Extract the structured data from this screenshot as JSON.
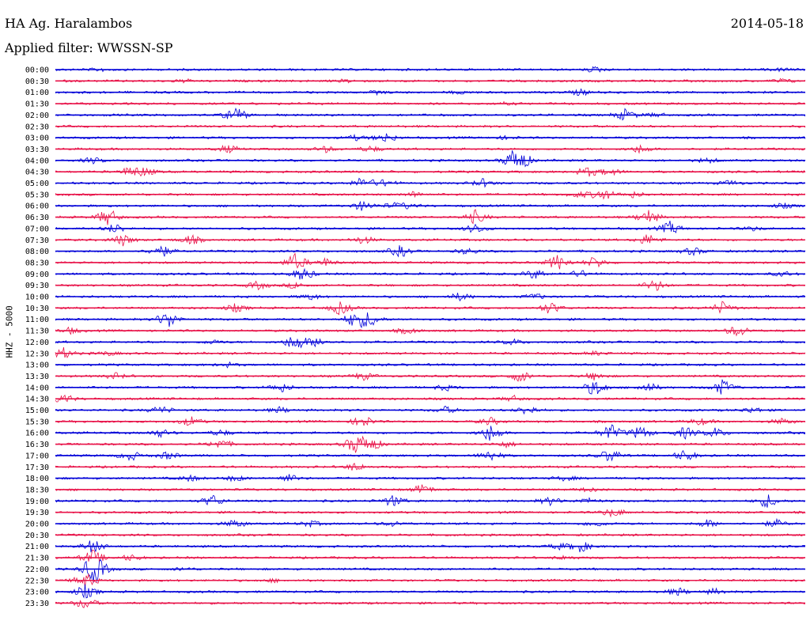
{
  "header": {
    "station": "HA Ag. Haralambos",
    "date": "2014-05-18",
    "filter": "Applied filter: WWSSN-SP"
  },
  "axis": {
    "ylabel": "HHZ - 5000"
  },
  "colors": {
    "trace_even": "#0000d8",
    "trace_odd": "#e8144a",
    "background": "#ffffff"
  },
  "traces": [
    {
      "time": "00:00",
      "events": [
        [
          0.06,
          0.3
        ],
        [
          0.72,
          0.5
        ],
        [
          0.97,
          0.3
        ]
      ]
    },
    {
      "time": "00:30",
      "events": [
        [
          0.17,
          0.3
        ],
        [
          0.39,
          0.3
        ],
        [
          0.97,
          0.4
        ]
      ]
    },
    {
      "time": "01:00",
      "events": [
        [
          0.43,
          0.3
        ],
        [
          0.54,
          0.3
        ],
        [
          0.7,
          0.6
        ]
      ]
    },
    {
      "time": "01:30",
      "events": [
        [
          0.6,
          0.2
        ]
      ]
    },
    {
      "time": "02:00",
      "events": [
        [
          0.24,
          1.6
        ],
        [
          0.76,
          1.2
        ],
        [
          0.8,
          0.4
        ]
      ]
    },
    {
      "time": "02:30",
      "events": []
    },
    {
      "time": "03:00",
      "events": [
        [
          0.4,
          0.5
        ],
        [
          0.44,
          1.0
        ],
        [
          0.6,
          0.3
        ]
      ]
    },
    {
      "time": "03:30",
      "events": [
        [
          0.23,
          0.8
        ],
        [
          0.36,
          0.6
        ],
        [
          0.42,
          0.6
        ],
        [
          0.78,
          0.8
        ]
      ]
    },
    {
      "time": "04:00",
      "events": [
        [
          0.05,
          0.6
        ],
        [
          0.61,
          1.4
        ],
        [
          0.62,
          1.8
        ],
        [
          0.87,
          0.5
        ]
      ]
    },
    {
      "time": "04:30",
      "events": [
        [
          0.1,
          1.0
        ],
        [
          0.12,
          0.8
        ],
        [
          0.71,
          1.0
        ],
        [
          0.74,
          0.7
        ]
      ]
    },
    {
      "time": "05:00",
      "events": [
        [
          0.41,
          1.2
        ],
        [
          0.44,
          0.7
        ],
        [
          0.57,
          0.8
        ],
        [
          0.9,
          0.5
        ]
      ]
    },
    {
      "time": "05:30",
      "events": [
        [
          0.48,
          0.6
        ],
        [
          0.7,
          0.6
        ],
        [
          0.73,
          1.2
        ],
        [
          0.77,
          0.6
        ]
      ]
    },
    {
      "time": "06:00",
      "events": [
        [
          0.41,
          1.0
        ],
        [
          0.45,
          0.5
        ],
        [
          0.47,
          0.5
        ],
        [
          0.97,
          0.5
        ]
      ]
    },
    {
      "time": "06:30",
      "events": [
        [
          0.07,
          1.8
        ],
        [
          0.56,
          1.4
        ],
        [
          0.79,
          1.6
        ]
      ]
    },
    {
      "time": "07:00",
      "events": [
        [
          0.08,
          1.0
        ],
        [
          0.56,
          1.0
        ],
        [
          0.82,
          1.4
        ],
        [
          0.93,
          0.4
        ]
      ]
    },
    {
      "time": "07:30",
      "events": [
        [
          0.09,
          1.2
        ],
        [
          0.18,
          1.0
        ],
        [
          0.41,
          0.8
        ],
        [
          0.79,
          1.2
        ]
      ]
    },
    {
      "time": "08:00",
      "events": [
        [
          0.14,
          1.4
        ],
        [
          0.46,
          1.2
        ],
        [
          0.55,
          0.6
        ],
        [
          0.85,
          0.8
        ]
      ]
    },
    {
      "time": "08:30",
      "events": [
        [
          0.32,
          1.8
        ],
        [
          0.36,
          0.8
        ],
        [
          0.67,
          1.6
        ],
        [
          0.72,
          1.2
        ]
      ]
    },
    {
      "time": "09:00",
      "events": [
        [
          0.33,
          1.4
        ],
        [
          0.64,
          1.0
        ],
        [
          0.7,
          0.7
        ],
        [
          0.97,
          0.5
        ]
      ]
    },
    {
      "time": "09:30",
      "events": [
        [
          0.27,
          0.8
        ],
        [
          0.32,
          0.6
        ],
        [
          0.8,
          1.2
        ]
      ]
    },
    {
      "time": "10:00",
      "events": [
        [
          0.34,
          0.6
        ],
        [
          0.54,
          0.8
        ],
        [
          0.64,
          0.6
        ]
      ]
    },
    {
      "time": "10:30",
      "events": [
        [
          0.24,
          0.8
        ],
        [
          0.38,
          1.4
        ],
        [
          0.66,
          1.2
        ],
        [
          0.89,
          1.3
        ]
      ]
    },
    {
      "time": "11:00",
      "events": [
        [
          0.15,
          1.8
        ],
        [
          0.4,
          1.8
        ],
        [
          0.42,
          1.4
        ]
      ]
    },
    {
      "time": "11:30",
      "events": [
        [
          0.02,
          0.6
        ],
        [
          0.47,
          0.6
        ],
        [
          0.91,
          1.2
        ]
      ]
    },
    {
      "time": "12:00",
      "events": [
        [
          0.21,
          0.4
        ],
        [
          0.32,
          1.8
        ],
        [
          0.35,
          1.0
        ],
        [
          0.61,
          0.6
        ]
      ]
    },
    {
      "time": "12:30",
      "events": [
        [
          0.01,
          1.2
        ],
        [
          0.07,
          0.4
        ],
        [
          0.72,
          0.4
        ]
      ]
    },
    {
      "time": "13:00",
      "events": [
        [
          0.23,
          0.4
        ]
      ]
    },
    {
      "time": "13:30",
      "events": [
        [
          0.08,
          0.6
        ],
        [
          0.41,
          0.8
        ],
        [
          0.62,
          1.2
        ],
        [
          0.72,
          0.8
        ]
      ]
    },
    {
      "time": "14:00",
      "events": [
        [
          0.3,
          1.0
        ],
        [
          0.52,
          0.6
        ],
        [
          0.72,
          1.8
        ],
        [
          0.79,
          1.0
        ],
        [
          0.89,
          1.6
        ]
      ]
    },
    {
      "time": "14:30",
      "events": [
        [
          0.01,
          1.0
        ],
        [
          0.61,
          0.6
        ]
      ]
    },
    {
      "time": "15:00",
      "events": [
        [
          0.14,
          0.8
        ],
        [
          0.3,
          0.6
        ],
        [
          0.52,
          0.7
        ],
        [
          0.63,
          1.0
        ],
        [
          0.93,
          0.6
        ]
      ]
    },
    {
      "time": "15:30",
      "events": [
        [
          0.18,
          1.0
        ],
        [
          0.41,
          1.2
        ],
        [
          0.58,
          0.8
        ],
        [
          0.86,
          0.7
        ],
        [
          0.97,
          0.6
        ]
      ]
    },
    {
      "time": "16:00",
      "events": [
        [
          0.14,
          0.8
        ],
        [
          0.22,
          0.6
        ],
        [
          0.58,
          1.8
        ],
        [
          0.74,
          1.8
        ],
        [
          0.78,
          1.4
        ],
        [
          0.84,
          1.2
        ],
        [
          0.88,
          1.0
        ]
      ]
    },
    {
      "time": "16:30",
      "events": [
        [
          0.22,
          1.0
        ],
        [
          0.4,
          1.8
        ],
        [
          0.42,
          1.6
        ],
        [
          0.6,
          0.6
        ]
      ]
    },
    {
      "time": "17:00",
      "events": [
        [
          0.1,
          1.0
        ],
        [
          0.15,
          0.8
        ],
        [
          0.58,
          1.2
        ],
        [
          0.74,
          1.4
        ],
        [
          0.84,
          1.2
        ]
      ]
    },
    {
      "time": "17:30",
      "events": [
        [
          0.4,
          0.8
        ]
      ]
    },
    {
      "time": "18:00",
      "events": [
        [
          0.18,
          0.6
        ],
        [
          0.24,
          0.6
        ],
        [
          0.31,
          0.8
        ],
        [
          0.68,
          0.5
        ]
      ]
    },
    {
      "time": "18:30",
      "events": [
        [
          0.49,
          1.0
        ],
        [
          0.71,
          0.4
        ]
      ]
    },
    {
      "time": "19:00",
      "events": [
        [
          0.21,
          1.2
        ],
        [
          0.45,
          1.2
        ],
        [
          0.66,
          0.8
        ],
        [
          0.71,
          0.6
        ],
        [
          0.95,
          1.4
        ]
      ]
    },
    {
      "time": "19:30",
      "events": [
        [
          0.74,
          0.6
        ],
        [
          0.75,
          0.4
        ]
      ]
    },
    {
      "time": "20:00",
      "events": [
        [
          0.24,
          0.8
        ],
        [
          0.34,
          0.6
        ],
        [
          0.45,
          0.5
        ],
        [
          0.72,
          0.6
        ],
        [
          0.87,
          0.8
        ],
        [
          0.96,
          0.8
        ]
      ]
    },
    {
      "time": "20:30",
      "events": []
    },
    {
      "time": "21:00",
      "events": [
        [
          0.05,
          1.4
        ],
        [
          0.67,
          0.6
        ],
        [
          0.7,
          1.2
        ]
      ]
    },
    {
      "time": "21:30",
      "events": [
        [
          0.05,
          1.6
        ],
        [
          0.1,
          0.6
        ],
        [
          0.68,
          0.4
        ]
      ]
    },
    {
      "time": "22:00",
      "events": [
        [
          0.05,
          1.6
        ],
        [
          0.05,
          1.0
        ],
        [
          0.06,
          0.8
        ],
        [
          0.17,
          0.3
        ]
      ]
    },
    {
      "time": "22:30",
      "events": [
        [
          0.04,
          1.6
        ],
        [
          0.29,
          0.3
        ]
      ]
    },
    {
      "time": "23:00",
      "events": [
        [
          0.04,
          1.4
        ],
        [
          0.83,
          0.8
        ],
        [
          0.88,
          0.6
        ]
      ]
    },
    {
      "time": "23:30",
      "events": [
        [
          0.04,
          1.2
        ]
      ]
    }
  ]
}
